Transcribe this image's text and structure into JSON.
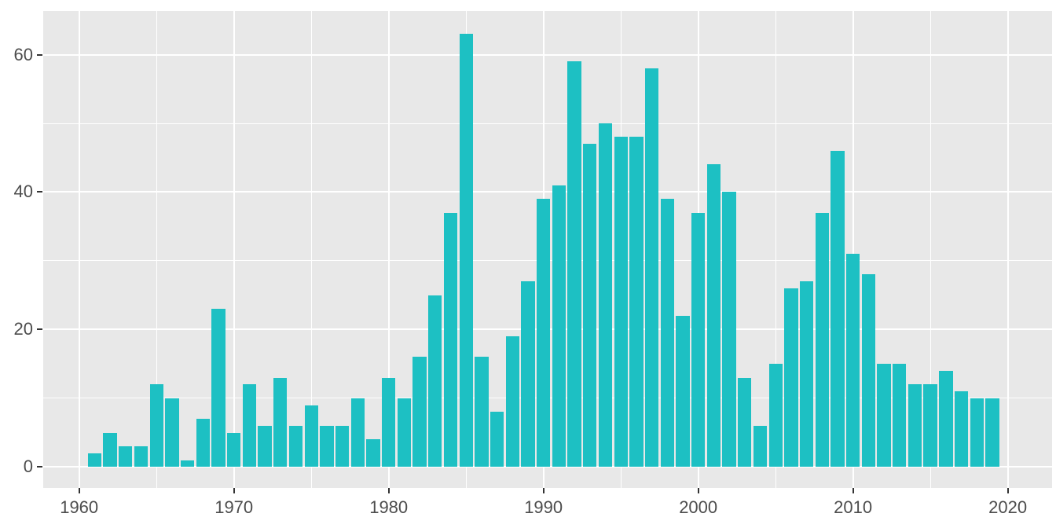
{
  "chart_data": {
    "type": "bar",
    "title": "",
    "subtitle": "",
    "xlabel": "",
    "ylabel": "",
    "legend": "none",
    "grid": true,
    "x": [
      1961,
      1962,
      1963,
      1964,
      1965,
      1966,
      1967,
      1968,
      1969,
      1970,
      1971,
      1972,
      1973,
      1974,
      1975,
      1976,
      1977,
      1978,
      1979,
      1980,
      1981,
      1982,
      1983,
      1984,
      1985,
      1986,
      1987,
      1988,
      1989,
      1990,
      1991,
      1992,
      1993,
      1994,
      1995,
      1996,
      1997,
      1998,
      1999,
      2000,
      2001,
      2002,
      2003,
      2004,
      2005,
      2006,
      2007,
      2008,
      2009,
      2010,
      2011,
      2012,
      2013,
      2014,
      2015,
      2016,
      2017,
      2018,
      2019
    ],
    "values": [
      2,
      5,
      3,
      3,
      12,
      10,
      1,
      7,
      23,
      5,
      12,
      6,
      13,
      6,
      9,
      6,
      6,
      10,
      4,
      13,
      10,
      16,
      25,
      37,
      63,
      16,
      8,
      19,
      27,
      39,
      41,
      59,
      47,
      50,
      48,
      48,
      58,
      39,
      22,
      37,
      44,
      40,
      13,
      6,
      15,
      26,
      27,
      37,
      46,
      31,
      28,
      15,
      15,
      12,
      12,
      14,
      11,
      10,
      10
    ],
    "bin_width": 1,
    "x_ticks": [
      1960,
      1970,
      1980,
      1990,
      2000,
      2010,
      2020
    ],
    "x_tick_labels": [
      "1960",
      "1970",
      "1980",
      "1990",
      "2000",
      "2010",
      "2020"
    ],
    "x_minor_ticks": [
      1965,
      1975,
      1985,
      1995,
      2005,
      2015
    ],
    "y_ticks": [
      0,
      20,
      40,
      60
    ],
    "y_tick_labels": [
      "0",
      "20",
      "40",
      "60"
    ],
    "y_minor_ticks": [
      10,
      30,
      50
    ],
    "xlim": [
      1957.68,
      2022.86
    ],
    "ylim": [
      -3.05,
      66.35
    ],
    "colors": {
      "bar_fill": "#1DC0C3",
      "panel_background": "#E8E8E8",
      "gridline": "#FFFFFF",
      "tick_mark": "#333333",
      "tick_label": "#4D4D4D",
      "figure_background": "#FFFFFF"
    }
  }
}
